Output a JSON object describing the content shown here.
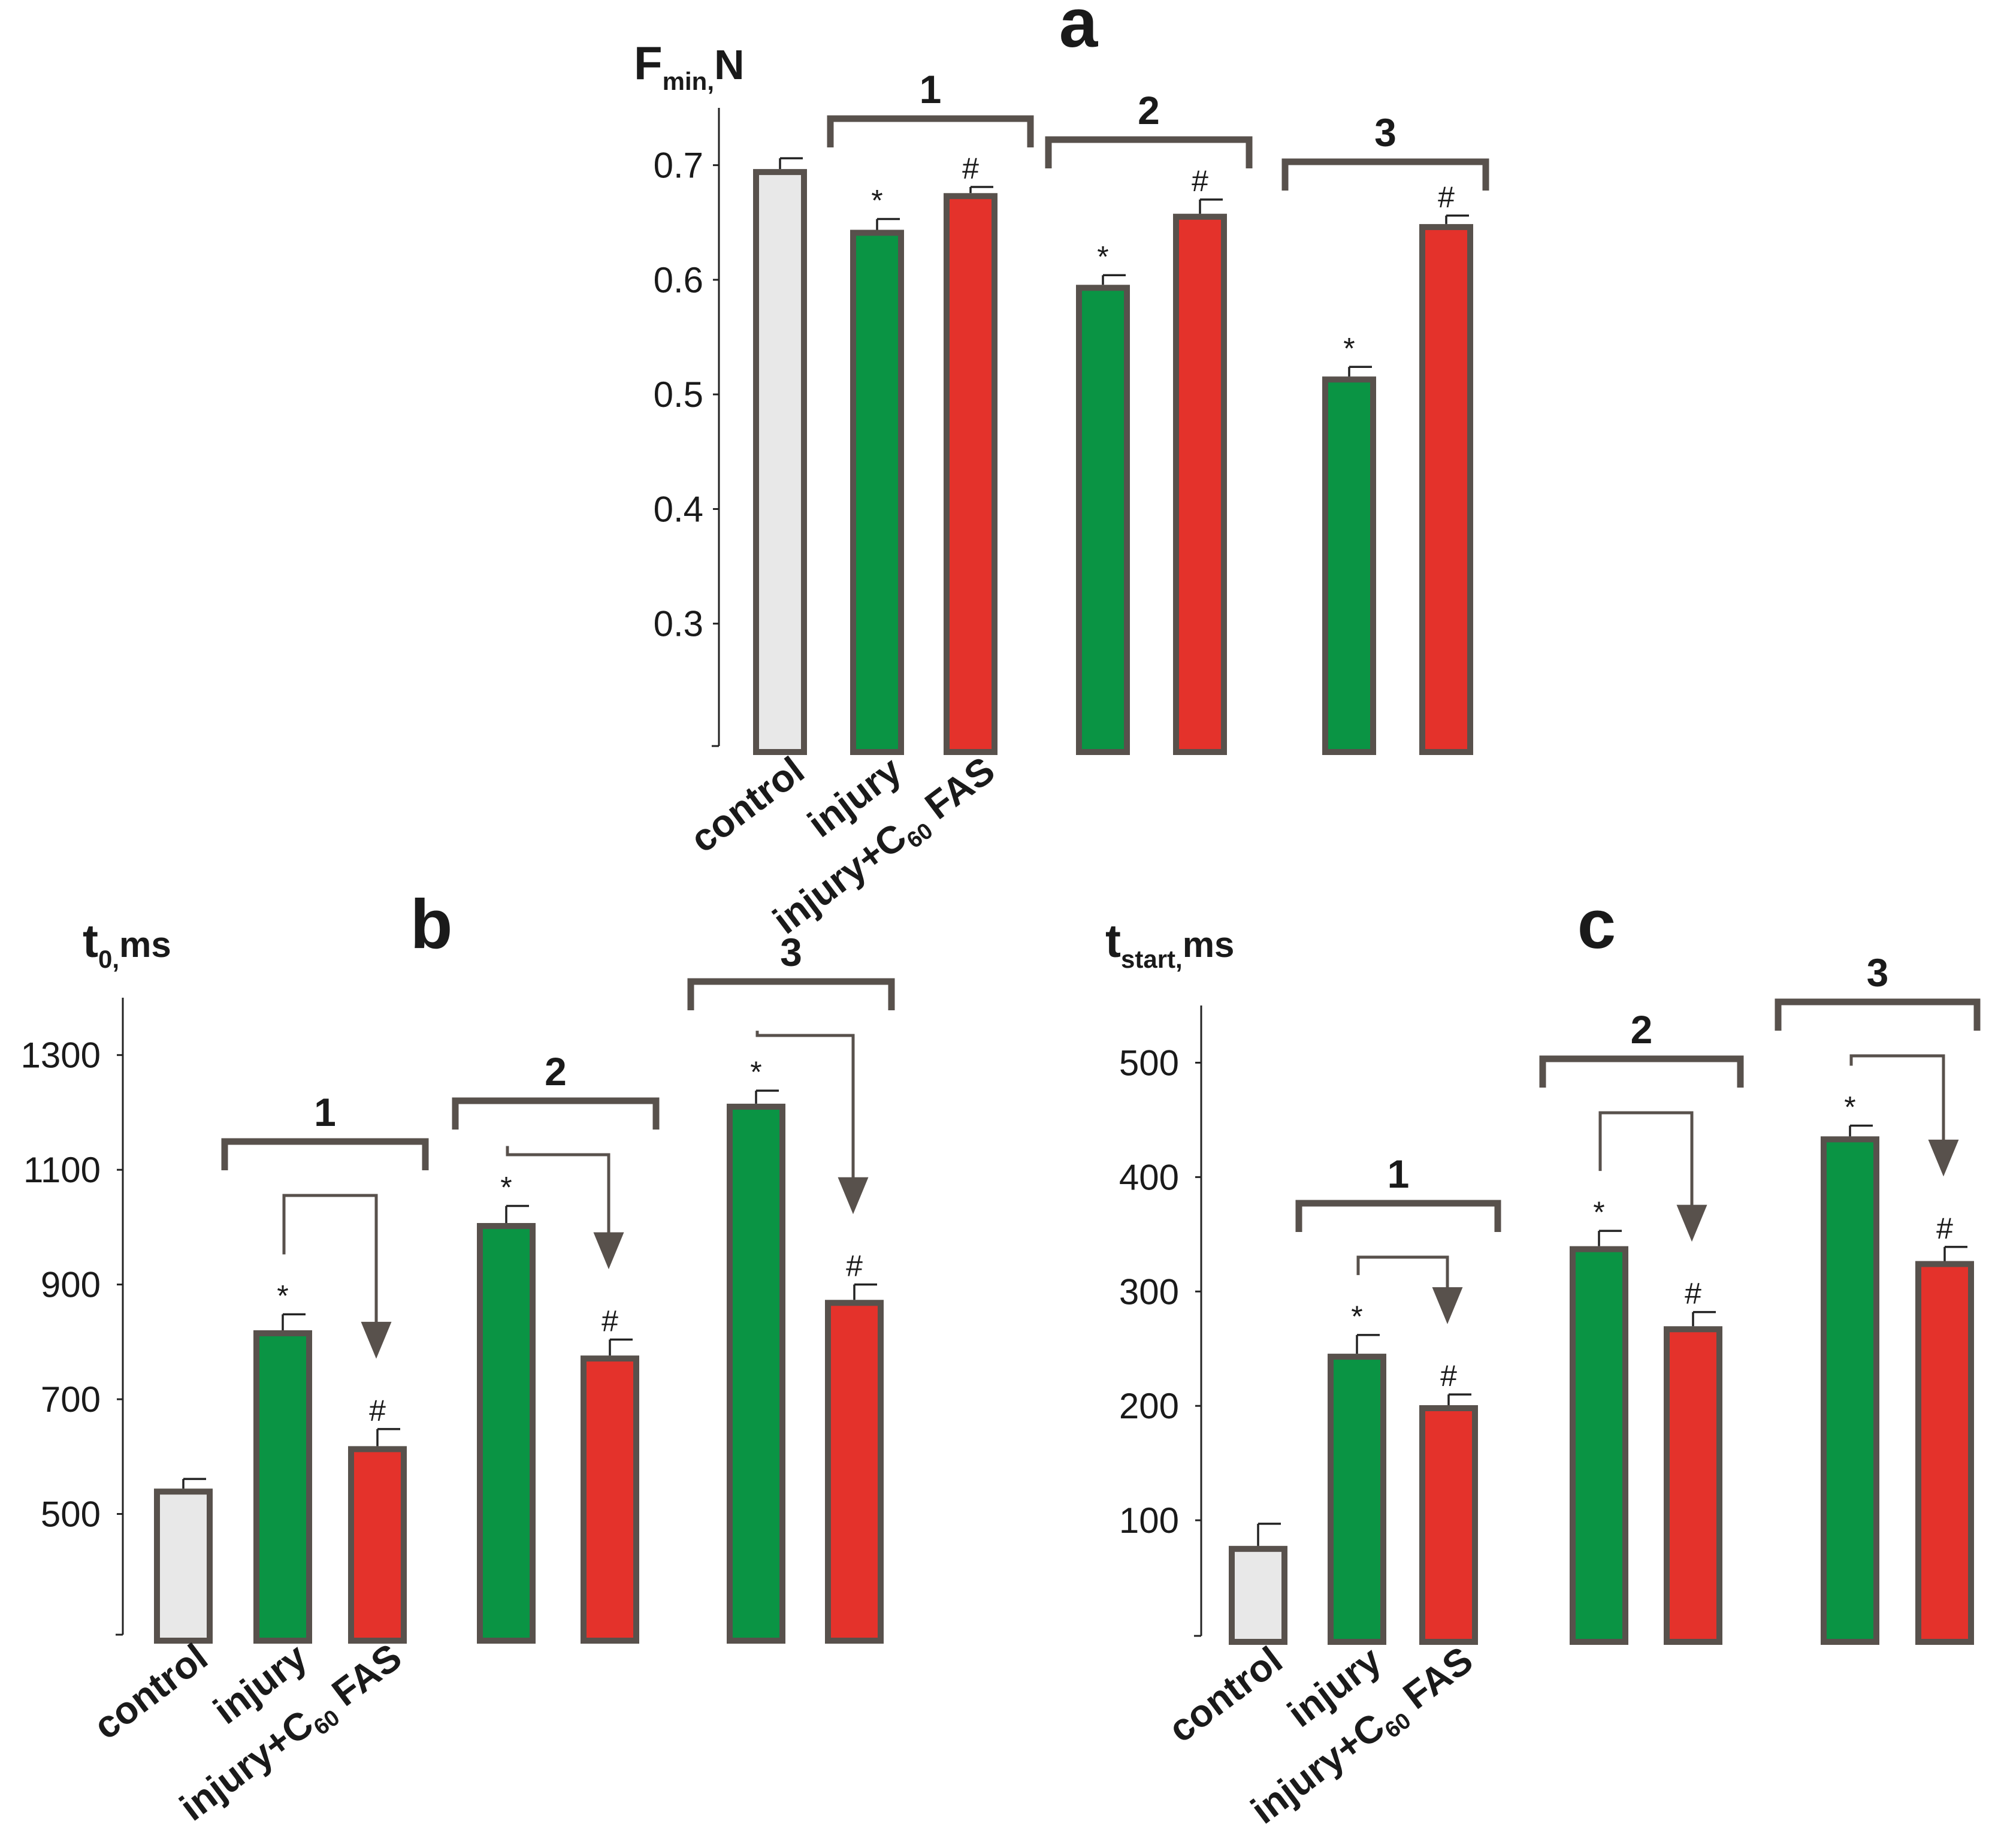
{
  "colors": {
    "control": "#e8e8e8",
    "injury": "#0a9444",
    "treated": "#e4322b",
    "outline": "#58514c",
    "text": "#1a1a1a"
  },
  "chart_data": [
    {
      "id": "a",
      "type": "bar",
      "panel_letter": "a",
      "ylabel_main": "F",
      "ylabel_sub": "min,",
      "ylabel_unit": "N",
      "ylim": [
        0.2,
        0.75
      ],
      "ticks": [
        0.3,
        0.4,
        0.5,
        0.6,
        0.7
      ],
      "tick_labels": [
        "0.3",
        "0.4",
        "0.5",
        "0.6",
        "0.7"
      ],
      "categories": [
        "control",
        "injury",
        "injury+C60 FAS"
      ],
      "category_labels": [
        {
          "text": "control"
        },
        {
          "text": "injury"
        },
        {
          "text": "injury+C",
          "sub": "60",
          "tail": " FAS"
        }
      ],
      "groups": [
        "1",
        "2",
        "3"
      ],
      "bars": [
        {
          "series": "control",
          "group": "",
          "value": 0.694,
          "error": 0.012,
          "mark": ""
        },
        {
          "series": "injury",
          "group": "1",
          "value": 0.641,
          "error": 0.012,
          "mark": "*"
        },
        {
          "series": "injury+C60 FAS",
          "group": "1",
          "value": 0.673,
          "error": 0.008,
          "mark": "#"
        },
        {
          "series": "injury",
          "group": "2",
          "value": 0.593,
          "error": 0.011,
          "mark": "*"
        },
        {
          "series": "injury+C60 FAS",
          "group": "2",
          "value": 0.655,
          "error": 0.015,
          "mark": "#"
        },
        {
          "series": "injury",
          "group": "3",
          "value": 0.513,
          "error": 0.011,
          "mark": "*"
        },
        {
          "series": "injury+C60 FAS",
          "group": "3",
          "value": 0.646,
          "error": 0.01,
          "mark": "#"
        }
      ],
      "arrows": false
    },
    {
      "id": "b",
      "type": "bar",
      "panel_letter": "b",
      "ylabel_main": "t",
      "ylabel_sub": "0,",
      "ylabel_unit": "ms",
      "ylim": [
        300,
        1400
      ],
      "ticks": [
        500,
        700,
        900,
        1100,
        1300
      ],
      "tick_labels": [
        "500",
        "700",
        "900",
        "1100",
        "1300"
      ],
      "categories": [
        "control",
        "injury",
        "injury+C60 FAS"
      ],
      "category_labels": [
        {
          "text": "control"
        },
        {
          "text": "injury"
        },
        {
          "text": "injury+C",
          "sub": "60",
          "tail": " FAS"
        }
      ],
      "groups": [
        "1",
        "2",
        "3"
      ],
      "bars": [
        {
          "series": "control",
          "group": "",
          "value": 539,
          "error": 22,
          "mark": ""
        },
        {
          "series": "injury",
          "group": "1",
          "value": 815,
          "error": 33,
          "mark": "*"
        },
        {
          "series": "injury+C60 FAS",
          "group": "1",
          "value": 613,
          "error": 35,
          "mark": "#"
        },
        {
          "series": "injury",
          "group": "2",
          "value": 1002,
          "error": 35,
          "mark": "*"
        },
        {
          "series": "injury+C60 FAS",
          "group": "2",
          "value": 771,
          "error": 33,
          "mark": "#"
        },
        {
          "series": "injury",
          "group": "3",
          "value": 1210,
          "error": 28,
          "mark": "*"
        },
        {
          "series": "injury+C60 FAS",
          "group": "3",
          "value": 868,
          "error": 32,
          "mark": "#"
        }
      ],
      "arrows": true
    },
    {
      "id": "c",
      "type": "bar",
      "panel_letter": "c",
      "ylabel_main": "t",
      "ylabel_sub": "start,",
      "ylabel_unit": "ms",
      "ylim": [
        0,
        550
      ],
      "ticks": [
        100,
        200,
        300,
        400,
        500
      ],
      "tick_labels": [
        "100",
        "200",
        "300",
        "400",
        "500"
      ],
      "categories": [
        "control",
        "injury",
        "injury+C60 FAS"
      ],
      "category_labels": [
        {
          "text": "control"
        },
        {
          "text": "injury"
        },
        {
          "text": "injury+C",
          "sub": "60",
          "tail": " FAS"
        }
      ],
      "groups": [
        "1",
        "2",
        "3"
      ],
      "bars": [
        {
          "series": "control",
          "group": "",
          "value": 75,
          "error": 22,
          "mark": ""
        },
        {
          "series": "injury",
          "group": "1",
          "value": 243,
          "error": 19,
          "mark": "*"
        },
        {
          "series": "injury+C60 FAS",
          "group": "1",
          "value": 198,
          "error": 12,
          "mark": "#"
        },
        {
          "series": "injury",
          "group": "2",
          "value": 337,
          "error": 16,
          "mark": "*"
        },
        {
          "series": "injury+C60 FAS",
          "group": "2",
          "value": 267,
          "error": 15,
          "mark": "#"
        },
        {
          "series": "injury",
          "group": "3",
          "value": 433,
          "error": 12,
          "mark": "*"
        },
        {
          "series": "injury+C60 FAS",
          "group": "3",
          "value": 324,
          "error": 15,
          "mark": "#"
        }
      ],
      "arrows": true
    }
  ]
}
